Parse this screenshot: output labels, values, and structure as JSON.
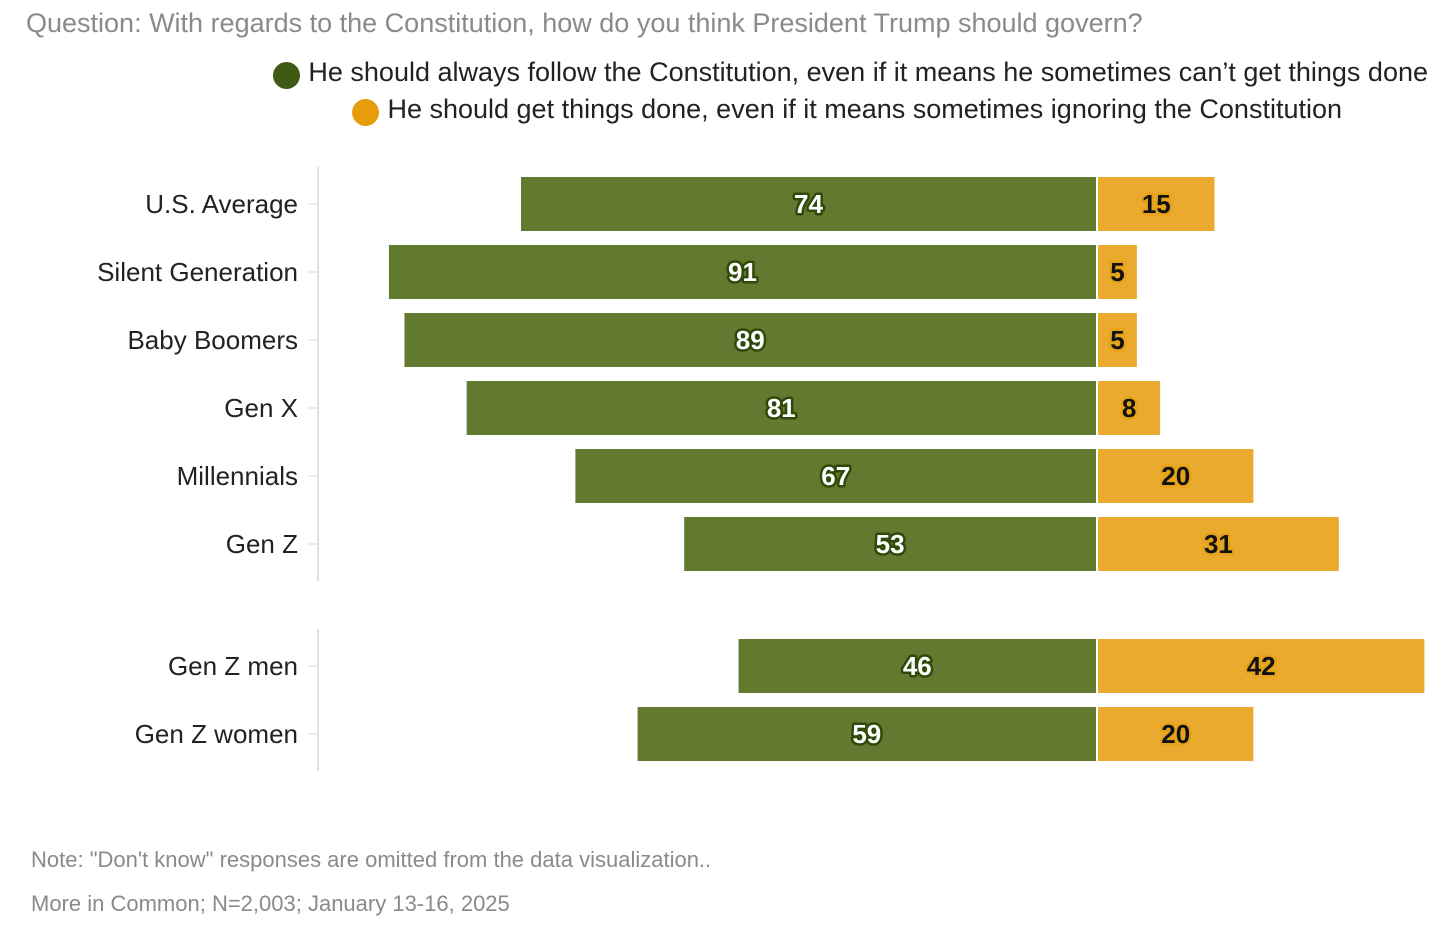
{
  "question": "Question: With regards to the Constitution, how do you think President Trump should govern?",
  "colors": {
    "follow": "#617a2f",
    "done": "#e9aa2e",
    "follow_dot": "#3f5a13",
    "done_dot": "#e69c0d"
  },
  "legend": [
    {
      "name": "He should always follow the Constitution, even if it means he sometimes can’t get things done"
    },
    {
      "name": "He should get things done, even if it means sometimes ignoring the Constitution"
    }
  ],
  "chart_data": {
    "type": "bar",
    "orientation": "horizontal-diverging",
    "legend_position": "top-right",
    "grid": false,
    "groups": [
      {
        "categories": [
          "U.S. Average",
          "Silent Generation",
          "Baby Boomers",
          "Gen X",
          "Millennials",
          "Gen Z"
        ]
      },
      {
        "categories": [
          "Gen Z men",
          "Gen Z women"
        ]
      }
    ],
    "categories": [
      "U.S. Average",
      "Silent Generation",
      "Baby Boomers",
      "Gen X",
      "Millennials",
      "Gen Z",
      "Gen Z men",
      "Gen Z women"
    ],
    "series": [
      {
        "name": "He should always follow the Constitution, even if it means he sometimes can’t get things done",
        "values": [
          74,
          91,
          89,
          81,
          67,
          53,
          46,
          59
        ]
      },
      {
        "name": "He should get things done, even if it means sometimes ignoring the Constitution",
        "values": [
          15,
          5,
          5,
          8,
          20,
          31,
          42,
          20
        ]
      }
    ]
  },
  "notes": {
    "note": "Note: \"Don't know\" responses are omitted from the data visualization..",
    "source": "More in Common; N=2,003; January 13-16, 2025"
  }
}
